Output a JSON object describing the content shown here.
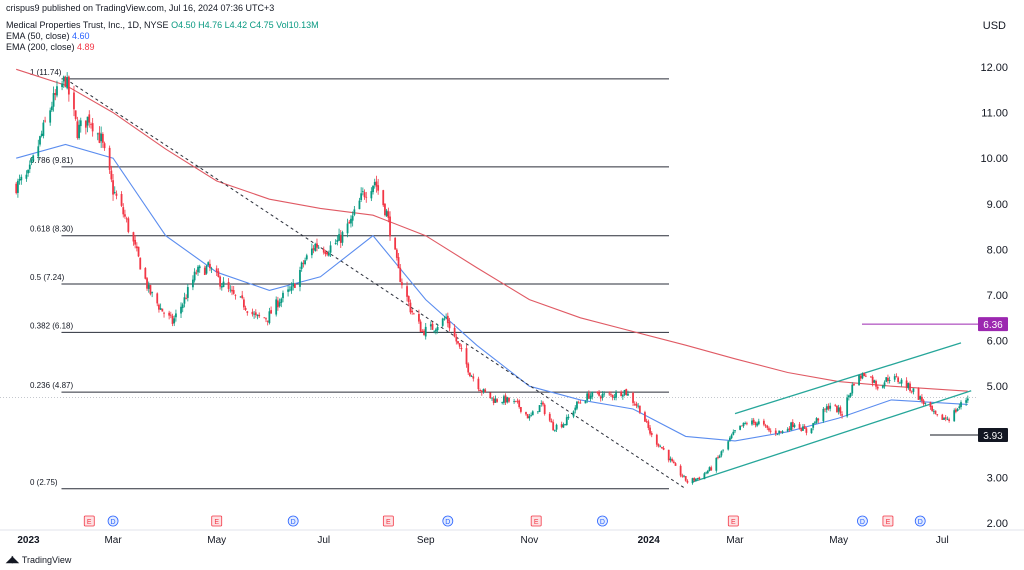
{
  "header": {
    "published": "crispus9 published on TradingView.com, Jul 16, 2024 07:36 UTC+3",
    "symbol": "Medical Properties Trust, Inc., 1D, NYSE",
    "ohlc": "O4.50 H4.76 L4.42 C4.75 Vol10.13M",
    "ema50_label": "EMA (50, close)",
    "ema50_value": "4.60",
    "ema200_label": "EMA (200, close)",
    "ema200_value": "4.89"
  },
  "currency": "USD",
  "footer": {
    "brand": "TradingView"
  },
  "colors": {
    "up": "#089981",
    "down": "#f23645",
    "ema50": "#5b8def",
    "ema200": "#e05a64",
    "channel": "#26a69a",
    "marker": "#9c27b0"
  },
  "chart_data": {
    "type": "candlestick",
    "y_axis": {
      "min": 2.0,
      "max": 12.0,
      "ticks": [
        "12.00",
        "11.00",
        "10.00",
        "9.00",
        "8.00",
        "7.00",
        "6.00",
        "5.00",
        "4.00",
        "3.00",
        "2.00"
      ]
    },
    "x_axis_labels": [
      "2023",
      "Mar",
      "May",
      "Jul",
      "Sep",
      "Nov",
      "2024",
      "Mar",
      "May",
      "Jul"
    ],
    "fib_levels": [
      {
        "label": "1 (11.74)",
        "price": 11.74
      },
      {
        "label": "0.786 (9.81)",
        "price": 9.81
      },
      {
        "label": "0.618 (8.30)",
        "price": 8.3
      },
      {
        "label": "0.5 (7.24)",
        "price": 7.24
      },
      {
        "label": "0.382 (6.18)",
        "price": 6.18
      },
      {
        "label": "0.236 (4.87)",
        "price": 4.87
      },
      {
        "label": "0 (2.75)",
        "price": 2.75
      }
    ],
    "price_markers": [
      {
        "label": "6.36",
        "price": 6.36,
        "style": "purple"
      },
      {
        "label": "3.93",
        "price": 3.93,
        "style": "dark"
      }
    ],
    "price_path": [
      [
        "2023-01-03",
        9.4
      ],
      [
        "2023-01-10",
        9.6
      ],
      [
        "2023-01-17",
        10.4
      ],
      [
        "2023-01-24",
        11.2
      ],
      [
        "2023-02-01",
        11.74
      ],
      [
        "2023-02-08",
        10.6
      ],
      [
        "2023-02-15",
        10.9
      ],
      [
        "2023-02-22",
        10.4
      ],
      [
        "2023-03-01",
        9.3
      ],
      [
        "2023-03-08",
        8.7
      ],
      [
        "2023-03-15",
        7.9
      ],
      [
        "2023-03-22",
        7.1
      ],
      [
        "2023-03-29",
        6.7
      ],
      [
        "2023-04-05",
        6.4
      ],
      [
        "2023-04-12",
        6.9
      ],
      [
        "2023-04-19",
        7.5
      ],
      [
        "2023-04-26",
        7.6
      ],
      [
        "2023-05-03",
        7.3
      ],
      [
        "2023-05-10",
        7.0
      ],
      [
        "2023-05-17",
        6.8
      ],
      [
        "2023-05-24",
        6.5
      ],
      [
        "2023-05-31",
        6.5
      ],
      [
        "2023-06-07",
        6.9
      ],
      [
        "2023-06-14",
        7.1
      ],
      [
        "2023-06-21",
        7.7
      ],
      [
        "2023-06-28",
        8.1
      ],
      [
        "2023-07-05",
        8.0
      ],
      [
        "2023-07-12",
        8.2
      ],
      [
        "2023-07-19",
        8.6
      ],
      [
        "2023-07-26",
        9.2
      ],
      [
        "2023-08-02",
        9.5
      ],
      [
        "2023-08-09",
        8.8
      ],
      [
        "2023-08-16",
        7.5
      ],
      [
        "2023-08-23",
        6.7
      ],
      [
        "2023-08-30",
        6.2
      ],
      [
        "2023-09-06",
        6.3
      ],
      [
        "2023-09-13",
        6.5
      ],
      [
        "2023-09-20",
        5.9
      ],
      [
        "2023-09-27",
        5.3
      ],
      [
        "2023-10-04",
        4.9
      ],
      [
        "2023-10-11",
        4.7
      ],
      [
        "2023-10-18",
        4.7
      ],
      [
        "2023-10-25",
        4.6
      ],
      [
        "2023-11-01",
        4.3
      ],
      [
        "2023-11-08",
        4.6
      ],
      [
        "2023-11-15",
        4.1
      ],
      [
        "2023-11-22",
        4.2
      ],
      [
        "2023-11-29",
        4.6
      ],
      [
        "2023-12-06",
        4.8
      ],
      [
        "2023-12-13",
        4.8
      ],
      [
        "2023-12-20",
        4.8
      ],
      [
        "2023-12-27",
        4.9
      ],
      [
        "2024-01-05",
        4.5
      ],
      [
        "2024-01-12",
        3.9
      ],
      [
        "2024-01-19",
        3.6
      ],
      [
        "2024-01-26",
        3.2
      ],
      [
        "2024-02-02",
        2.9
      ],
      [
        "2024-02-09",
        3.0
      ],
      [
        "2024-02-16",
        3.2
      ],
      [
        "2024-02-23",
        3.6
      ],
      [
        "2024-03-01",
        4.0
      ],
      [
        "2024-03-08",
        4.2
      ],
      [
        "2024-03-15",
        4.2
      ],
      [
        "2024-03-22",
        4.0
      ],
      [
        "2024-03-29",
        4.0
      ],
      [
        "2024-04-05",
        4.2
      ],
      [
        "2024-04-12",
        4.0
      ],
      [
        "2024-04-19",
        4.3
      ],
      [
        "2024-04-26",
        4.6
      ],
      [
        "2024-05-03",
        4.4
      ],
      [
        "2024-05-10",
        5.1
      ],
      [
        "2024-05-17",
        5.3
      ],
      [
        "2024-05-24",
        5.0
      ],
      [
        "2024-05-31",
        5.2
      ],
      [
        "2024-06-07",
        5.1
      ],
      [
        "2024-06-14",
        4.9
      ],
      [
        "2024-06-21",
        4.6
      ],
      [
        "2024-06-28",
        4.3
      ],
      [
        "2024-07-05",
        4.3
      ],
      [
        "2024-07-12",
        4.6
      ],
      [
        "2024-07-16",
        4.75
      ]
    ],
    "ema50": [
      [
        "2023-01-03",
        10.0
      ],
      [
        "2023-02-01",
        10.3
      ],
      [
        "2023-03-01",
        10.0
      ],
      [
        "2023-04-01",
        8.3
      ],
      [
        "2023-05-01",
        7.5
      ],
      [
        "2023-06-01",
        7.1
      ],
      [
        "2023-07-01",
        7.4
      ],
      [
        "2023-08-01",
        8.3
      ],
      [
        "2023-09-01",
        6.9
      ],
      [
        "2023-10-01",
        5.9
      ],
      [
        "2023-11-01",
        5.0
      ],
      [
        "2023-12-01",
        4.7
      ],
      [
        "2024-01-01",
        4.5
      ],
      [
        "2024-02-01",
        3.9
      ],
      [
        "2024-03-01",
        3.8
      ],
      [
        "2024-04-01",
        4.0
      ],
      [
        "2024-05-01",
        4.3
      ],
      [
        "2024-06-01",
        4.7
      ],
      [
        "2024-07-16",
        4.6
      ]
    ],
    "ema200": [
      [
        "2023-01-03",
        11.95
      ],
      [
        "2023-02-01",
        11.6
      ],
      [
        "2023-03-01",
        11.0
      ],
      [
        "2023-04-01",
        10.2
      ],
      [
        "2023-05-01",
        9.5
      ],
      [
        "2023-06-01",
        9.1
      ],
      [
        "2023-07-01",
        8.9
      ],
      [
        "2023-08-01",
        8.75
      ],
      [
        "2023-09-01",
        8.3
      ],
      [
        "2023-10-01",
        7.6
      ],
      [
        "2023-11-01",
        6.9
      ],
      [
        "2023-12-01",
        6.5
      ],
      [
        "2024-01-01",
        6.2
      ],
      [
        "2024-02-01",
        5.9
      ],
      [
        "2024-03-01",
        5.6
      ],
      [
        "2024-04-01",
        5.3
      ],
      [
        "2024-05-01",
        5.1
      ],
      [
        "2024-06-01",
        5.0
      ],
      [
        "2024-07-16",
        4.89
      ]
    ],
    "trendline": [
      [
        "2023-02-01",
        11.74
      ],
      [
        "2024-02-01",
        2.75
      ]
    ],
    "channel": {
      "lower": [
        [
          "2024-02-05",
          2.9
        ],
        [
          "2024-07-18",
          4.9
        ]
      ],
      "upper": [
        [
          "2024-03-01",
          4.4
        ],
        [
          "2024-07-12",
          5.95
        ]
      ]
    },
    "event_markers": [
      {
        "date": "2023-02-15",
        "label": "E"
      },
      {
        "date": "2023-03-01",
        "label": "D"
      },
      {
        "date": "2023-05-01",
        "label": "E"
      },
      {
        "date": "2023-06-15",
        "label": "D"
      },
      {
        "date": "2023-08-10",
        "label": "E"
      },
      {
        "date": "2023-09-14",
        "label": "D"
      },
      {
        "date": "2023-11-05",
        "label": "E"
      },
      {
        "date": "2023-12-14",
        "label": "D"
      },
      {
        "date": "2024-02-29",
        "label": "E"
      },
      {
        "date": "2024-05-15",
        "label": "D"
      },
      {
        "date": "2024-05-30",
        "label": "E"
      },
      {
        "date": "2024-06-18",
        "label": "D"
      }
    ]
  }
}
